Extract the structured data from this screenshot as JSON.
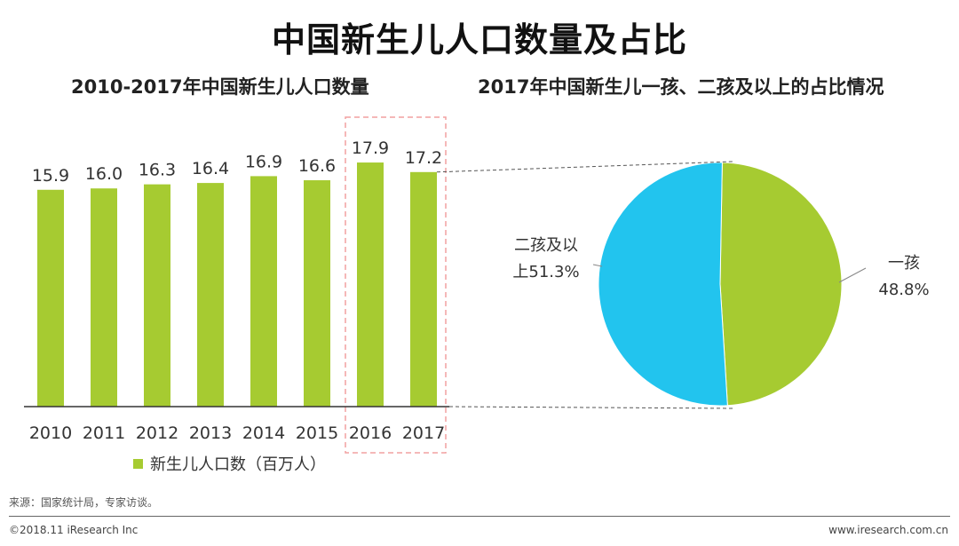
{
  "title": "中国新生儿人口数量及占比",
  "source": "来源：国家统计局，专家访谈。",
  "copyright": "©2018.11 iResearch Inc",
  "site": "www.iresearch.com.cn",
  "colors": {
    "bar": "#A6CB31",
    "pie_second": "#22C4EE",
    "pie_first": "#A6CB31",
    "highlight_box": "#F2A0A0"
  },
  "chart_data": [
    {
      "type": "bar",
      "title": "2010-2017年中国新生儿人口数量",
      "categories": [
        "2010",
        "2011",
        "2012",
        "2013",
        "2014",
        "2015",
        "2016",
        "2017"
      ],
      "series": [
        {
          "name": "新生儿人口数（百万人）",
          "values": [
            15.9,
            16.0,
            16.3,
            16.4,
            16.9,
            16.6,
            17.9,
            17.2
          ]
        }
      ],
      "data_labels": [
        "15.9",
        "16.0",
        "16.3",
        "16.4",
        "16.9",
        "16.6",
        "17.9",
        "17.2"
      ],
      "highlighted_categories": [
        "2016",
        "2017"
      ],
      "legend": "bottom",
      "grid": false
    },
    {
      "type": "pie",
      "title": "2017年中国新生儿一孩、二孩及以上的占比情况",
      "slices": [
        {
          "label_line1": "一孩",
          "label_line2": "48.8%",
          "value": 48.8
        },
        {
          "label_line1": "二孩及以",
          "label_line2": "上51.3%",
          "value": 51.3
        }
      ]
    }
  ]
}
